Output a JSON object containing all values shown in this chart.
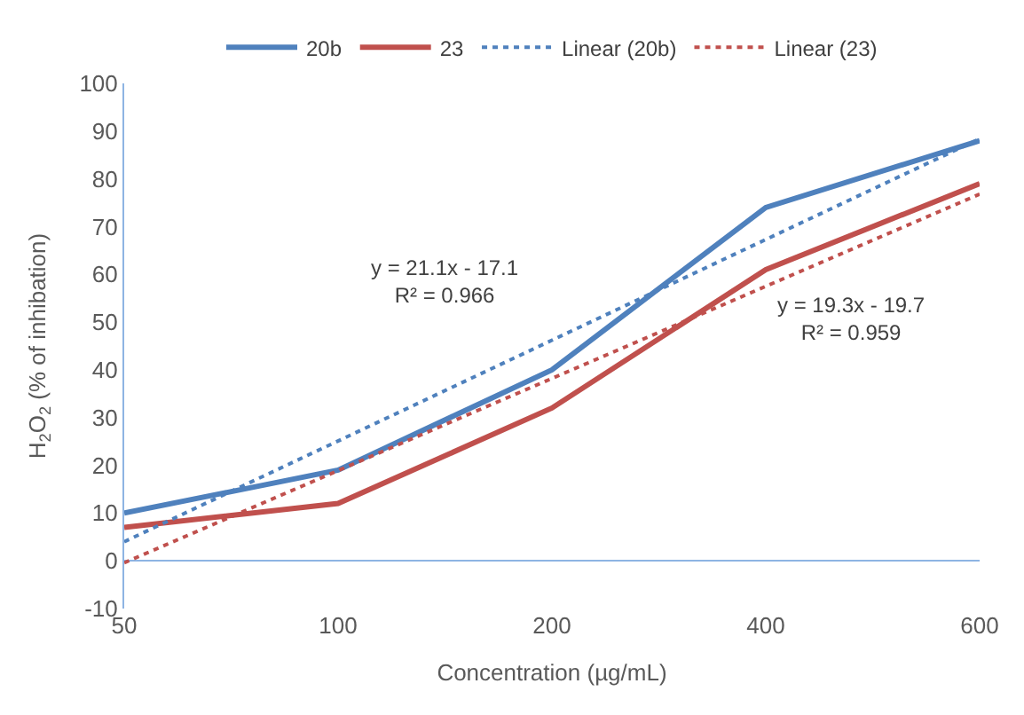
{
  "chart_data": {
    "type": "line",
    "xlabel": "Concentration (µg/mL)",
    "ylabel": "H$_{2}$O$_{2}$ (% of inhibation)",
    "categories": [
      "50",
      "100",
      "200",
      "400",
      "600"
    ],
    "series": [
      {
        "name": "20b",
        "color": "#4f81bd",
        "values": [
          10,
          19,
          40,
          74,
          88
        ],
        "line_style": "solid"
      },
      {
        "name": "23",
        "color": "#c0504d",
        "values": [
          7,
          12,
          32,
          61,
          79
        ],
        "line_style": "solid"
      },
      {
        "name": "Linear (20b)",
        "color": "#4f81bd",
        "values": [
          4.0,
          25.1,
          46.2,
          67.3,
          88.4
        ],
        "line_style": "dotted"
      },
      {
        "name": "Linear (23)",
        "color": "#c0504d",
        "values": [
          -0.4,
          18.9,
          38.2,
          57.5,
          76.8
        ],
        "line_style": "dotted"
      }
    ],
    "annotations": [
      "y = 21.1x - 17.1\nR² = 0.966",
      "y = 19.3x - 19.7\nR² = 0.959"
    ],
    "ylim": [
      -10,
      100
    ],
    "yticks": [
      -10,
      0,
      10,
      20,
      30,
      40,
      50,
      60,
      70,
      80,
      90,
      100
    ],
    "legend": "top",
    "marker": "none"
  }
}
